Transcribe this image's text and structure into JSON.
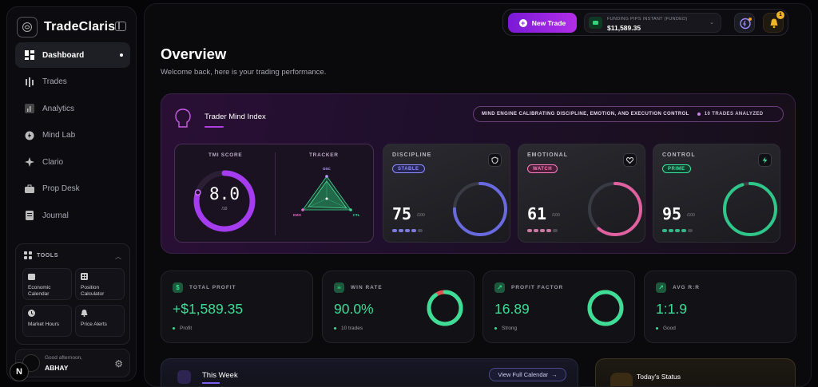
{
  "brand": {
    "name": "TradeClaris"
  },
  "nav": [
    {
      "label": "Dashboard",
      "icon": "dashboard-icon",
      "active": true
    },
    {
      "label": "Trades",
      "icon": "trades-icon"
    },
    {
      "label": "Analytics",
      "icon": "analytics-icon"
    },
    {
      "label": "Mind Lab",
      "icon": "mind-lab-icon"
    },
    {
      "label": "Clario",
      "icon": "clario-icon"
    },
    {
      "label": "Prop Desk",
      "icon": "prop-desk-icon"
    },
    {
      "label": "Journal",
      "icon": "journal-icon"
    }
  ],
  "tools": {
    "heading": "TOOLS",
    "items": [
      {
        "label": "Economic Calendar",
        "line1": "Economic",
        "line2": "Calendar"
      },
      {
        "label": "Position Calculator",
        "line1": "Position",
        "line2": "Calculator"
      },
      {
        "label": "Market Hours",
        "line1": "Market Hours",
        "line2": ""
      },
      {
        "label": "Price Alerts",
        "line1": "Price Alerts",
        "line2": ""
      }
    ]
  },
  "user": {
    "greeting": "Good afternoon,",
    "name": "ABHAY",
    "n_badge": "N"
  },
  "topbar": {
    "new_trade": "New Trade",
    "account_label": "FUNDING PIPS INSTANT (FUNDED)",
    "account_value": "$11,589.35",
    "notification_count": "1"
  },
  "header": {
    "title": "Overview",
    "subtitle": "Welcome back, here is your trading performance."
  },
  "tmi": {
    "title": "Trader Mind Index",
    "icon_letters": "T M I",
    "engine_text": "MIND ENGINE CALIBRATING DISCIPLINE, EMOTION, AND EXECUTION CONTROL",
    "trades_analyzed": "10 TRADES ANALYZED",
    "score_label": "TMI SCORE",
    "tracker_label": "TRACKER",
    "score": "8.0",
    "score_of": "/10",
    "score_fraction": 0.8,
    "tracker_axes": [
      "DSC",
      "EMO",
      "CTL"
    ]
  },
  "metrics": [
    {
      "title": "DISCIPLINE",
      "tag": "STABLE",
      "value": "75",
      "of": "/100",
      "fraction": 0.75,
      "color": "#6a6ae0",
      "tag_color": "#8c8cff",
      "tag_bg": "#262650",
      "dot_color": "#8c8cff"
    },
    {
      "title": "EMOTIONAL",
      "tag": "WATCH",
      "value": "61",
      "of": "/100",
      "fraction": 0.61,
      "color": "#e060a0",
      "tag_color": "#ff7abf",
      "tag_bg": "#4a1e36",
      "dot_color": "#e98bb8"
    },
    {
      "title": "CONTROL",
      "tag": "PRIME",
      "value": "95",
      "of": "/100",
      "fraction": 0.95,
      "color": "#2fc68a",
      "tag_color": "#38e5a0",
      "tag_bg": "#123d2d",
      "dot_color": "#38d29a"
    }
  ],
  "stats": [
    {
      "label": "TOTAL PROFIT",
      "value": "+$1,589.35",
      "sub": "Profit",
      "icon": "$"
    },
    {
      "label": "WIN RATE",
      "value": "90.0%",
      "sub": "10 trades",
      "icon": "≡",
      "ring_fraction": 0.9
    },
    {
      "label": "PROFIT FACTOR",
      "value": "16.89",
      "sub": "Strong",
      "icon": "↗",
      "ring_fraction": 1.0
    },
    {
      "label": "AVG R:R",
      "value": "1:1.9",
      "sub": "Good",
      "icon": "↗"
    }
  ],
  "week": {
    "title": "This Week",
    "view_button": "View Full Calendar"
  },
  "status": {
    "title": "Today's Status"
  }
}
